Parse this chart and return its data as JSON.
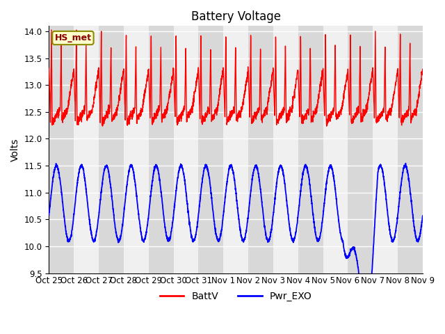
{
  "title": "Battery Voltage",
  "ylabel": "Volts",
  "ylim": [
    9.5,
    14.1
  ],
  "yticks": [
    9.5,
    10.0,
    10.5,
    11.0,
    11.5,
    12.0,
    12.5,
    13.0,
    13.5,
    14.0
  ],
  "xlabel_ticks": [
    "Oct 25",
    "Oct 26",
    "Oct 27",
    "Oct 28",
    "Oct 29",
    "Oct 30",
    "Oct 31",
    "Nov 1",
    "Nov 2",
    "Nov 3",
    "Nov 4",
    "Nov 5",
    "Nov 6",
    "Nov 7",
    "Nov 8",
    "Nov 9"
  ],
  "legend_labels": [
    "BattV",
    "Pwr_EXO"
  ],
  "legend_colors": [
    "red",
    "blue"
  ],
  "annotation_text": "HS_met",
  "grid_color": "#cccccc",
  "bg_gray": "#d8d8d8",
  "bg_white": "#f0f0f0",
  "line_red_color": "red",
  "line_blue_color": "blue",
  "title_fontsize": 12,
  "axis_label_fontsize": 10,
  "tick_fontsize": 8.5,
  "legend_fontsize": 10
}
